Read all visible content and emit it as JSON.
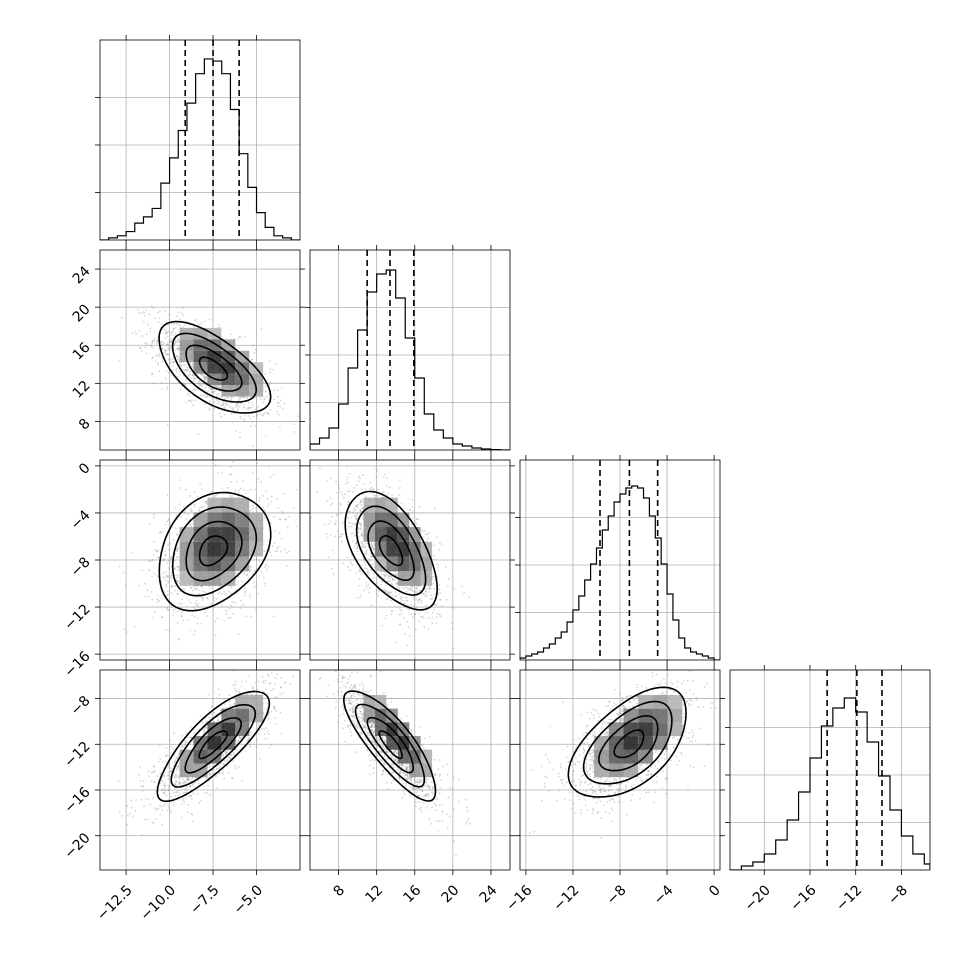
{
  "chart_data": {
    "type": "corner",
    "title": "",
    "n_params": 4,
    "params": [
      {
        "mean": -7.5,
        "sd": 1.6,
        "range": [
          -14,
          -2.5
        ],
        "ticks": [
          -12.5,
          -10.0,
          -7.5,
          -5.0
        ],
        "tick_labels": [
          "−12.5",
          "−10.0",
          "−7.5",
          "−5.0"
        ],
        "quantiles": [
          -9.1,
          -7.5,
          -6.0
        ]
      },
      {
        "mean": 13.5,
        "sd": 2.4,
        "range": [
          5,
          26
        ],
        "ticks": [
          8,
          12,
          16,
          20,
          24
        ],
        "tick_labels": [
          "8",
          "12",
          "16",
          "20",
          "24"
        ],
        "quantiles": [
          11.0,
          13.4,
          15.9
        ]
      },
      {
        "mean": -7.2,
        "sd": 2.5,
        "range": [
          -16.5,
          0.5
        ],
        "ticks": [
          -16,
          -12,
          -8,
          -4,
          0
        ],
        "tick_labels": [
          "−16",
          "−12",
          "−8",
          "−4",
          "0"
        ],
        "quantiles": [
          -9.7,
          -7.2,
          -4.8
        ]
      },
      {
        "mean": -12.0,
        "sd": 2.4,
        "range": [
          -23,
          -5.5
        ],
        "ticks": [
          -20,
          -16,
          -12,
          -8
        ],
        "tick_labels": [
          "−20",
          "−16",
          "−12",
          "−8"
        ],
        "quantiles": [
          -14.5,
          -11.9,
          -9.7
        ]
      }
    ],
    "correlations": [
      [
        1,
        -0.62,
        0.3,
        0.8
      ],
      [
        -0.62,
        1,
        -0.55,
        -0.82
      ],
      [
        0.3,
        -0.55,
        1,
        0.55
      ],
      [
        0.8,
        -0.82,
        0.55,
        1
      ]
    ],
    "histograms": [
      {
        "param": 0,
        "bin_edges": [
          -14.0,
          -13.5,
          -13.0,
          -12.5,
          -12.0,
          -11.5,
          -11.0,
          -10.5,
          -10.0,
          -9.5,
          -9.0,
          -8.5,
          -8.0,
          -7.5,
          -7.0,
          -6.5,
          -6.0,
          -5.5,
          -5.0,
          -4.5,
          -4.0,
          -3.5,
          -3.0,
          -2.5
        ],
        "counts": [
          0,
          10,
          20,
          40,
          80,
          110,
          150,
          270,
          390,
          520,
          650,
          790,
          860,
          850,
          790,
          620,
          410,
          250,
          130,
          60,
          20,
          10,
          0
        ],
        "ylim": [
          0,
          950
        ]
      },
      {
        "param": 1,
        "bin_edges": [
          5,
          6,
          7,
          8,
          9,
          10,
          11,
          12,
          13,
          14,
          15,
          16,
          17,
          18,
          19,
          20,
          21,
          22,
          23,
          24,
          25,
          26
        ],
        "counts": [
          30,
          60,
          110,
          230,
          410,
          600,
          790,
          880,
          900,
          760,
          560,
          360,
          180,
          100,
          60,
          30,
          20,
          10,
          5,
          2,
          0
        ],
        "ylim": [
          0,
          1000
        ]
      },
      {
        "param": 2,
        "bin_edges": [
          -16.5,
          -16.0,
          -15.5,
          -15.0,
          -14.5,
          -14.0,
          -13.5,
          -13.0,
          -12.5,
          -12.0,
          -11.5,
          -11.0,
          -10.5,
          -10.0,
          -9.5,
          -9.0,
          -8.5,
          -8.0,
          -7.5,
          -7.0,
          -6.5,
          -6.0,
          -5.5,
          -5.0,
          -4.5,
          -4.0,
          -3.5,
          -3.0,
          -2.5,
          -2.0,
          -1.5,
          -1.0,
          -0.5,
          0.0,
          0.5
        ],
        "counts": [
          10,
          20,
          30,
          40,
          60,
          80,
          110,
          140,
          190,
          250,
          320,
          400,
          480,
          560,
          650,
          720,
          790,
          830,
          860,
          870,
          860,
          810,
          720,
          610,
          480,
          330,
          200,
          110,
          60,
          40,
          30,
          20,
          10,
          0
        ],
        "ylim": [
          0,
          1000
        ]
      },
      {
        "param": 3,
        "bin_edges": [
          -23.0,
          -22.0,
          -21.0,
          -20.0,
          -19.0,
          -18.0,
          -17.0,
          -16.0,
          -15.0,
          -14.0,
          -13.0,
          -12.0,
          -11.0,
          -10.0,
          -9.0,
          -8.0,
          -7.0,
          -6.0,
          -5.5
        ],
        "counts": [
          0,
          20,
          40,
          80,
          150,
          250,
          390,
          560,
          720,
          810,
          860,
          790,
          640,
          470,
          300,
          170,
          80,
          30
        ],
        "ylim": [
          0,
          1000
        ]
      }
    ],
    "contour_levels_sigma": [
      0.5,
      1.0,
      1.5,
      2.0
    ],
    "grid": true,
    "legend": "none"
  }
}
